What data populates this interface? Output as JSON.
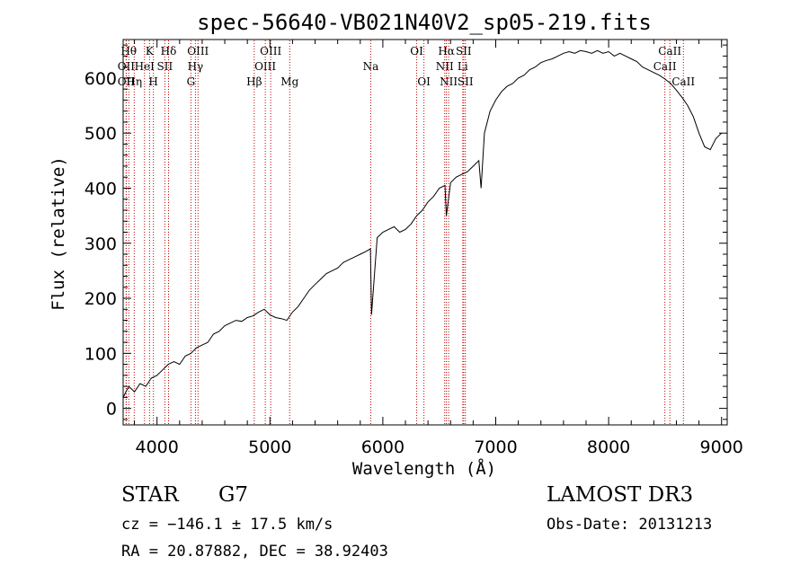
{
  "chart_data": {
    "type": "line",
    "title": "spec-56640-VB021N40V2_sp05-219.fits",
    "xlabel": "Wavelength (Å)",
    "ylabel": "Flux (relative)",
    "xlim": [
      3700,
      9050
    ],
    "ylim": [
      -30,
      670
    ],
    "x_ticks": [
      4000,
      5000,
      6000,
      7000,
      8000,
      9000
    ],
    "x_tick_labels": [
      "4000",
      "5000",
      "6000",
      "7000",
      "8000",
      "9000"
    ],
    "y_ticks": [
      0,
      100,
      200,
      300,
      400,
      500,
      600
    ],
    "y_tick_labels": [
      "0",
      "100",
      "200",
      "300",
      "400",
      "500",
      "600"
    ],
    "spectrum": {
      "x": [
        3700,
        3750,
        3800,
        3850,
        3900,
        3950,
        4000,
        4050,
        4100,
        4150,
        4200,
        4250,
        4300,
        4350,
        4400,
        4450,
        4500,
        4550,
        4600,
        4650,
        4700,
        4750,
        4800,
        4850,
        4900,
        4950,
        5000,
        5050,
        5100,
        5150,
        5200,
        5250,
        5300,
        5350,
        5400,
        5450,
        5500,
        5550,
        5600,
        5650,
        5700,
        5750,
        5800,
        5850,
        5890,
        5900,
        5950,
        6000,
        6050,
        6100,
        6150,
        6200,
        6250,
        6300,
        6350,
        6400,
        6450,
        6500,
        6550,
        6563,
        6600,
        6650,
        6700,
        6750,
        6800,
        6850,
        6870,
        6900,
        6950,
        7000,
        7050,
        7100,
        7150,
        7200,
        7250,
        7300,
        7350,
        7400,
        7450,
        7500,
        7550,
        7600,
        7650,
        7700,
        7750,
        7800,
        7850,
        7900,
        7950,
        8000,
        8050,
        8100,
        8150,
        8200,
        8250,
        8300,
        8350,
        8400,
        8450,
        8500,
        8550,
        8600,
        8650,
        8700,
        8750,
        8800,
        8850,
        8900,
        8950,
        9000
      ],
      "y": [
        20,
        40,
        30,
        45,
        40,
        55,
        60,
        70,
        80,
        85,
        80,
        95,
        100,
        110,
        115,
        120,
        135,
        140,
        150,
        155,
        160,
        158,
        165,
        168,
        175,
        180,
        170,
        165,
        163,
        160,
        175,
        185,
        200,
        215,
        225,
        235,
        245,
        250,
        255,
        265,
        270,
        275,
        280,
        285,
        290,
        170,
        310,
        320,
        325,
        330,
        320,
        325,
        335,
        350,
        360,
        375,
        385,
        400,
        405,
        350,
        410,
        420,
        425,
        430,
        440,
        450,
        400,
        500,
        540,
        560,
        575,
        585,
        590,
        600,
        605,
        615,
        620,
        628,
        632,
        635,
        640,
        645,
        648,
        645,
        650,
        648,
        645,
        650,
        645,
        648,
        640,
        645,
        640,
        635,
        630,
        620,
        615,
        610,
        605,
        598,
        590,
        578,
        565,
        550,
        530,
        500,
        475,
        470,
        490,
        500
      ]
    },
    "reference_lines": [
      {
        "x": 3750,
        "label": "Hθ",
        "row": 0
      },
      {
        "x": 3727,
        "label": "OII",
        "row": 1
      },
      {
        "x": 3727,
        "label": "OII",
        "row": 2
      },
      {
        "x": 3798,
        "label": "Hη",
        "row": 2
      },
      {
        "x": 3889,
        "label": "HeI",
        "row": 1
      },
      {
        "x": 3934,
        "label": "K",
        "row": 0
      },
      {
        "x": 3968,
        "label": "H",
        "row": 2
      },
      {
        "x": 4069,
        "label": "SII",
        "row": 1
      },
      {
        "x": 4102,
        "label": "Hδ",
        "row": 0
      },
      {
        "x": 4300,
        "label": "G",
        "row": 2
      },
      {
        "x": 4340,
        "label": "Hγ",
        "row": 1
      },
      {
        "x": 4363,
        "label": "OIII",
        "row": 0
      },
      {
        "x": 4861,
        "label": "Hβ",
        "row": 2
      },
      {
        "x": 4959,
        "label": "OIII",
        "row": 1
      },
      {
        "x": 5007,
        "label": "OIII",
        "row": 0
      },
      {
        "x": 5175,
        "label": "Mg",
        "row": 2
      },
      {
        "x": 5893,
        "label": "Na",
        "row": 1
      },
      {
        "x": 6300,
        "label": "OI",
        "row": 0
      },
      {
        "x": 6364,
        "label": "OI",
        "row": 2
      },
      {
        "x": 6548,
        "label": "NII",
        "row": 1
      },
      {
        "x": 6563,
        "label": "Hα",
        "row": 0
      },
      {
        "x": 6583,
        "label": "NII",
        "row": 2
      },
      {
        "x": 6708,
        "label": "Li",
        "row": 1
      },
      {
        "x": 6716,
        "label": "SII",
        "row": 0
      },
      {
        "x": 6731,
        "label": "SII",
        "row": 2
      },
      {
        "x": 8498,
        "label": "CaII",
        "row": 1
      },
      {
        "x": 8542,
        "label": "CaII",
        "row": 0
      },
      {
        "x": 8662,
        "label": "CaII",
        "row": 2
      }
    ]
  },
  "info": {
    "class": "STAR",
    "subclass": "G7",
    "survey": "LAMOST DR3",
    "cz": "cz = −146.1 ± 17.5 km/s",
    "obs_date": "Obs-Date: 20131213",
    "coords": "RA =  20.87882, DEC =  38.92403"
  }
}
